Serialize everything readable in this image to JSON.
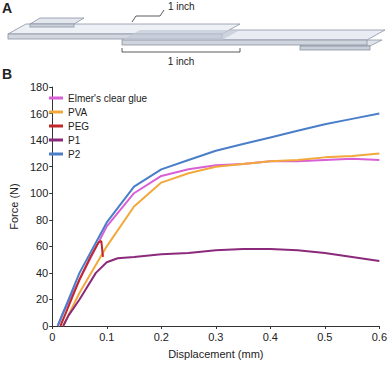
{
  "panel_labels": [
    "A",
    "B"
  ],
  "diagram": {
    "dimension_labels": [
      "1 inch",
      "1 inch"
    ]
  },
  "chart_data": {
    "type": "line",
    "xlabel": "Displacement (mm)",
    "ylabel": "Force (N)",
    "xlim": [
      0,
      0.6
    ],
    "xticks": [
      0,
      0.1,
      0.2,
      0.3,
      0.4,
      0.5,
      0.6
    ],
    "ylim": [
      0,
      180
    ],
    "yticks": [
      0,
      20,
      40,
      60,
      80,
      100,
      120,
      140,
      160,
      180
    ],
    "grid": false,
    "legend": "upper left",
    "series": [
      {
        "name": "Elmer's clear glue",
        "color": "#d95fd6",
        "x": [
          0.01,
          0.02,
          0.05,
          0.1,
          0.15,
          0.2,
          0.25,
          0.3,
          0.35,
          0.4,
          0.45,
          0.5,
          0.55,
          0.6
        ],
        "values": [
          0,
          10,
          35,
          75,
          100,
          113,
          118,
          121,
          122,
          124,
          124,
          125,
          126,
          125
        ]
      },
      {
        "name": "PVA",
        "color": "#f2a93b",
        "x": [
          0.02,
          0.05,
          0.1,
          0.15,
          0.2,
          0.25,
          0.3,
          0.35,
          0.4,
          0.45,
          0.5,
          0.55,
          0.6
        ],
        "values": [
          0,
          25,
          60,
          90,
          108,
          115,
          120,
          122,
          124,
          125,
          127,
          128,
          130
        ]
      },
      {
        "name": "PEG",
        "color": "#c0282a",
        "x": [
          0.015,
          0.03,
          0.05,
          0.07,
          0.085,
          0.09,
          0.093
        ],
        "values": [
          0,
          15,
          35,
          52,
          63,
          64,
          52
        ]
      },
      {
        "name": "P1",
        "color": "#8b2a7b",
        "x": [
          0.02,
          0.03,
          0.05,
          0.08,
          0.1,
          0.12,
          0.15,
          0.2,
          0.25,
          0.3,
          0.35,
          0.4,
          0.45,
          0.5,
          0.55,
          0.6
        ],
        "values": [
          0,
          8,
          20,
          40,
          48,
          51,
          52,
          54,
          55,
          57,
          58,
          58,
          57,
          55,
          52,
          49
        ]
      },
      {
        "name": "P2",
        "color": "#4a7ec8",
        "x": [
          0.01,
          0.05,
          0.1,
          0.15,
          0.2,
          0.25,
          0.3,
          0.35,
          0.4,
          0.45,
          0.5,
          0.55,
          0.6
        ],
        "values": [
          0,
          40,
          78,
          105,
          118,
          125,
          132,
          137,
          142,
          147,
          152,
          156,
          160
        ]
      }
    ]
  }
}
